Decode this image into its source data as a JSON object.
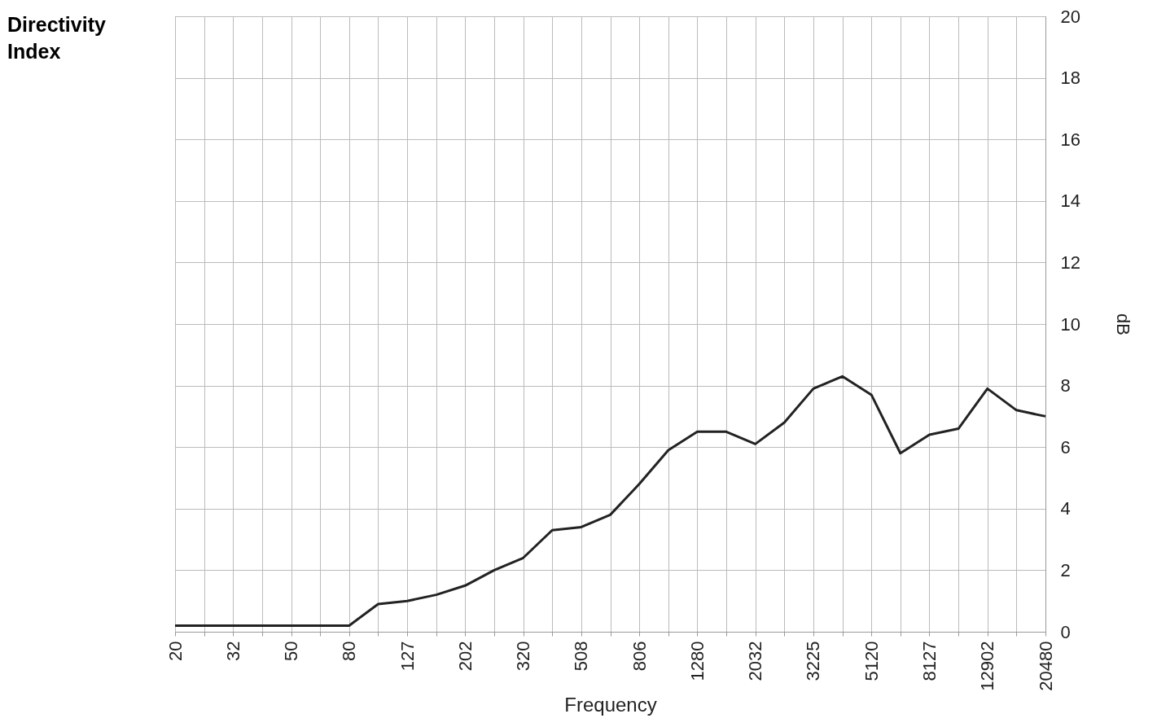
{
  "chart_data": {
    "type": "line",
    "title": "Directivity Index",
    "xlabel": "Frequency",
    "ylabel": "dB",
    "categories": [
      "20",
      null,
      "32",
      null,
      "50",
      null,
      "80",
      null,
      "127",
      null,
      "202",
      null,
      "320",
      null,
      "508",
      null,
      "806",
      null,
      "1280",
      null,
      "2032",
      null,
      "3225",
      null,
      "5120",
      null,
      "8127",
      null,
      "12902",
      null,
      "20480"
    ],
    "series": [
      {
        "color": "#222222",
        "values": [
          0.2,
          0.2,
          0.2,
          0.2,
          0.2,
          0.2,
          0.2,
          0.9,
          1.0,
          1.2,
          1.5,
          2.0,
          2.4,
          3.3,
          3.4,
          3.8,
          4.8,
          5.9,
          6.5,
          6.5,
          6.1,
          6.8,
          7.9,
          8.3,
          7.7,
          5.8,
          6.4,
          6.6,
          7.9,
          7.2,
          7.0
        ]
      }
    ],
    "ylim": [
      0,
      20
    ],
    "yticks": [
      0,
      2,
      4,
      6,
      8,
      10,
      12,
      14,
      16,
      18,
      20
    ],
    "grid": true,
    "marker": "none",
    "line_style": "solid"
  }
}
